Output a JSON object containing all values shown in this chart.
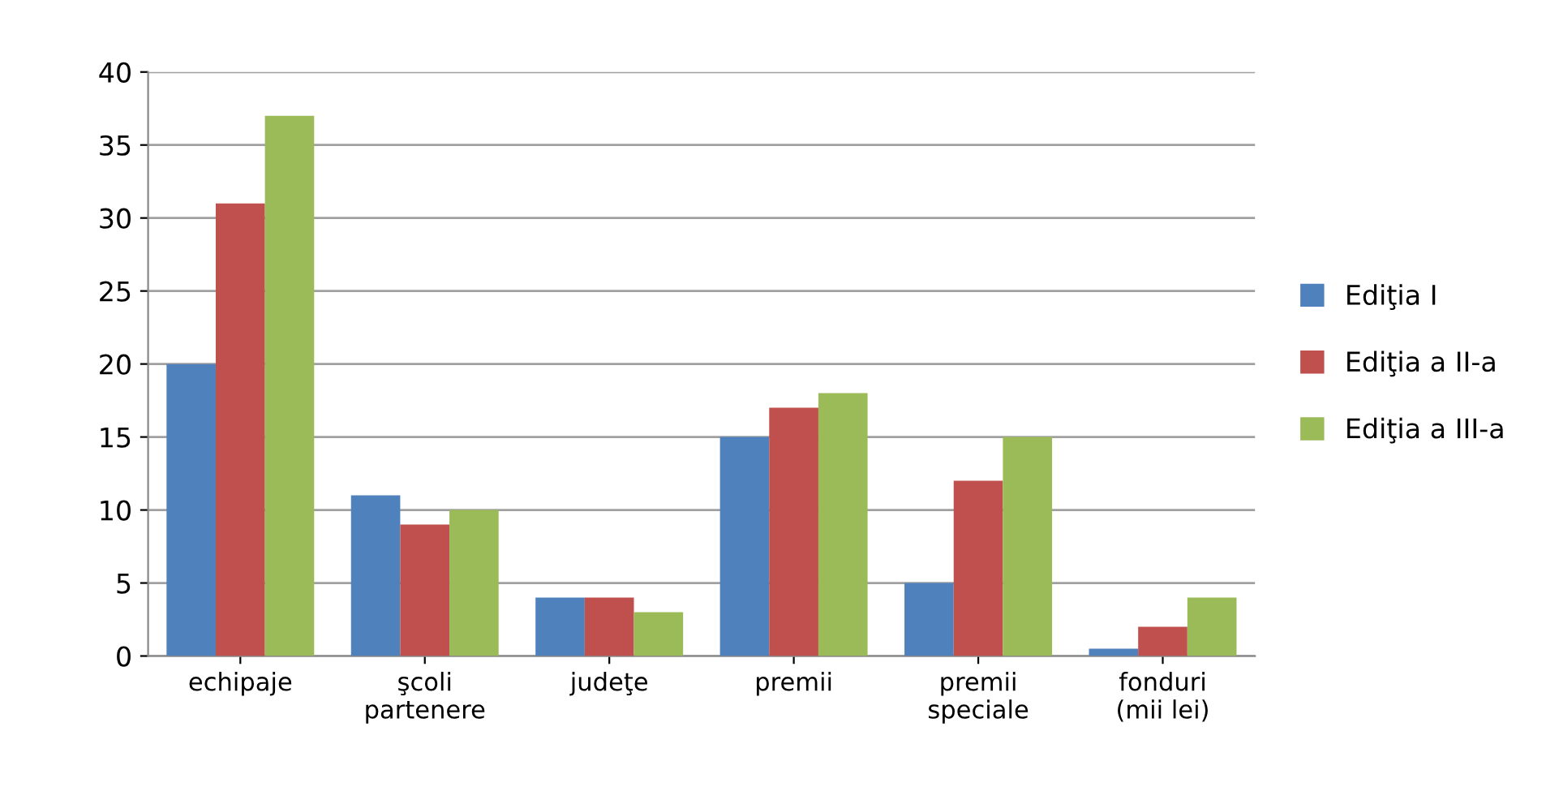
{
  "chart_data": {
    "type": "bar",
    "categories": [
      "echipaje",
      "şcoli\npartenere",
      "judeţe",
      "premii",
      "premii\nspeciale",
      "fonduri\n(mii lei)"
    ],
    "series": [
      {
        "name": "Ediţia I",
        "color": "#4f81bd",
        "values": [
          20,
          11,
          4,
          15,
          5,
          0.5
        ]
      },
      {
        "name": "Ediţia a II-a",
        "color": "#c0504d",
        "values": [
          31,
          9,
          4,
          17,
          12,
          2
        ]
      },
      {
        "name": "Ediţia a III-a",
        "color": "#9bbb59",
        "values": [
          37,
          10,
          3,
          18,
          15,
          4
        ]
      }
    ],
    "ylim": [
      0,
      40
    ],
    "yticks": [
      0,
      5,
      10,
      15,
      20,
      25,
      30,
      35,
      40
    ],
    "grid": "y",
    "legend": "right"
  }
}
